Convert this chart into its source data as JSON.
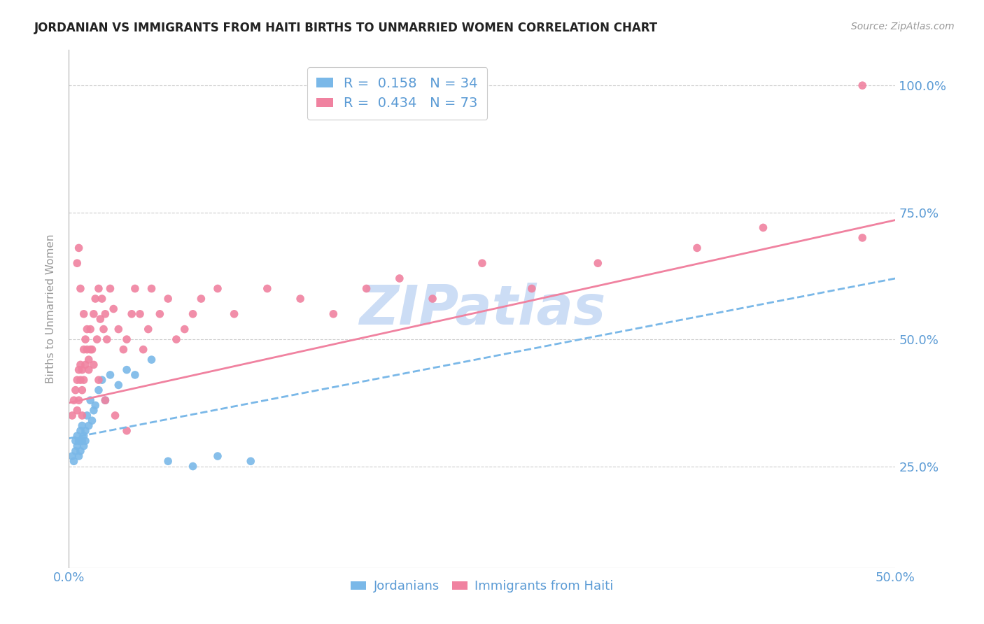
{
  "title": "JORDANIAN VS IMMIGRANTS FROM HAITI BIRTHS TO UNMARRIED WOMEN CORRELATION CHART",
  "source": "Source: ZipAtlas.com",
  "ylabel": "Births to Unmarried Women",
  "ytick_labels": [
    "25.0%",
    "50.0%",
    "75.0%",
    "100.0%"
  ],
  "ytick_values": [
    0.25,
    0.5,
    0.75,
    1.0
  ],
  "xmin": 0.0,
  "xmax": 0.5,
  "ymin": 0.05,
  "ymax": 1.07,
  "legend_R1": "0.158",
  "legend_N1": "34",
  "legend_R2": "0.434",
  "legend_N2": "73",
  "color_jordanian": "#7ab8e8",
  "color_haiti": "#f082a0",
  "color_text_blue": "#5b9bd5",
  "color_grid": "#cccccc",
  "color_watermark": "#ccddf5",
  "jordanian_x": [
    0.002,
    0.003,
    0.004,
    0.004,
    0.005,
    0.005,
    0.006,
    0.006,
    0.007,
    0.007,
    0.008,
    0.008,
    0.009,
    0.009,
    0.01,
    0.01,
    0.011,
    0.012,
    0.013,
    0.014,
    0.015,
    0.016,
    0.018,
    0.02,
    0.022,
    0.025,
    0.03,
    0.035,
    0.04,
    0.05,
    0.06,
    0.075,
    0.09,
    0.11
  ],
  "jordanian_y": [
    0.27,
    0.26,
    0.28,
    0.3,
    0.29,
    0.31,
    0.27,
    0.3,
    0.28,
    0.32,
    0.3,
    0.33,
    0.29,
    0.31,
    0.3,
    0.32,
    0.35,
    0.33,
    0.38,
    0.34,
    0.36,
    0.37,
    0.4,
    0.42,
    0.38,
    0.43,
    0.41,
    0.44,
    0.43,
    0.46,
    0.26,
    0.25,
    0.27,
    0.26
  ],
  "haiti_x": [
    0.002,
    0.003,
    0.004,
    0.005,
    0.005,
    0.006,
    0.006,
    0.007,
    0.007,
    0.008,
    0.008,
    0.009,
    0.009,
    0.01,
    0.01,
    0.011,
    0.012,
    0.012,
    0.013,
    0.014,
    0.015,
    0.016,
    0.017,
    0.018,
    0.019,
    0.02,
    0.021,
    0.022,
    0.023,
    0.025,
    0.027,
    0.03,
    0.033,
    0.035,
    0.038,
    0.04,
    0.043,
    0.045,
    0.048,
    0.05,
    0.055,
    0.06,
    0.065,
    0.07,
    0.075,
    0.08,
    0.09,
    0.1,
    0.12,
    0.14,
    0.16,
    0.18,
    0.2,
    0.22,
    0.25,
    0.28,
    0.32,
    0.38,
    0.42,
    0.48,
    0.005,
    0.007,
    0.009,
    0.011,
    0.013,
    0.015,
    0.018,
    0.022,
    0.028,
    0.035,
    0.006,
    0.008,
    0.48
  ],
  "haiti_y": [
    0.35,
    0.38,
    0.4,
    0.36,
    0.42,
    0.44,
    0.38,
    0.42,
    0.45,
    0.4,
    0.44,
    0.48,
    0.42,
    0.45,
    0.5,
    0.48,
    0.44,
    0.46,
    0.52,
    0.48,
    0.55,
    0.58,
    0.5,
    0.6,
    0.54,
    0.58,
    0.52,
    0.55,
    0.5,
    0.6,
    0.56,
    0.52,
    0.48,
    0.5,
    0.55,
    0.6,
    0.55,
    0.48,
    0.52,
    0.6,
    0.55,
    0.58,
    0.5,
    0.52,
    0.55,
    0.58,
    0.6,
    0.55,
    0.6,
    0.58,
    0.55,
    0.6,
    0.62,
    0.58,
    0.65,
    0.6,
    0.65,
    0.68,
    0.72,
    0.7,
    0.65,
    0.6,
    0.55,
    0.52,
    0.48,
    0.45,
    0.42,
    0.38,
    0.35,
    0.32,
    0.68,
    0.35,
    1.0
  ],
  "trendline_j_x0": 0.0,
  "trendline_j_x1": 0.5,
  "trendline_j_y0": 0.305,
  "trendline_j_y1": 0.62,
  "trendline_h_x0": 0.0,
  "trendline_h_x1": 0.5,
  "trendline_h_y0": 0.375,
  "trendline_h_y1": 0.735
}
